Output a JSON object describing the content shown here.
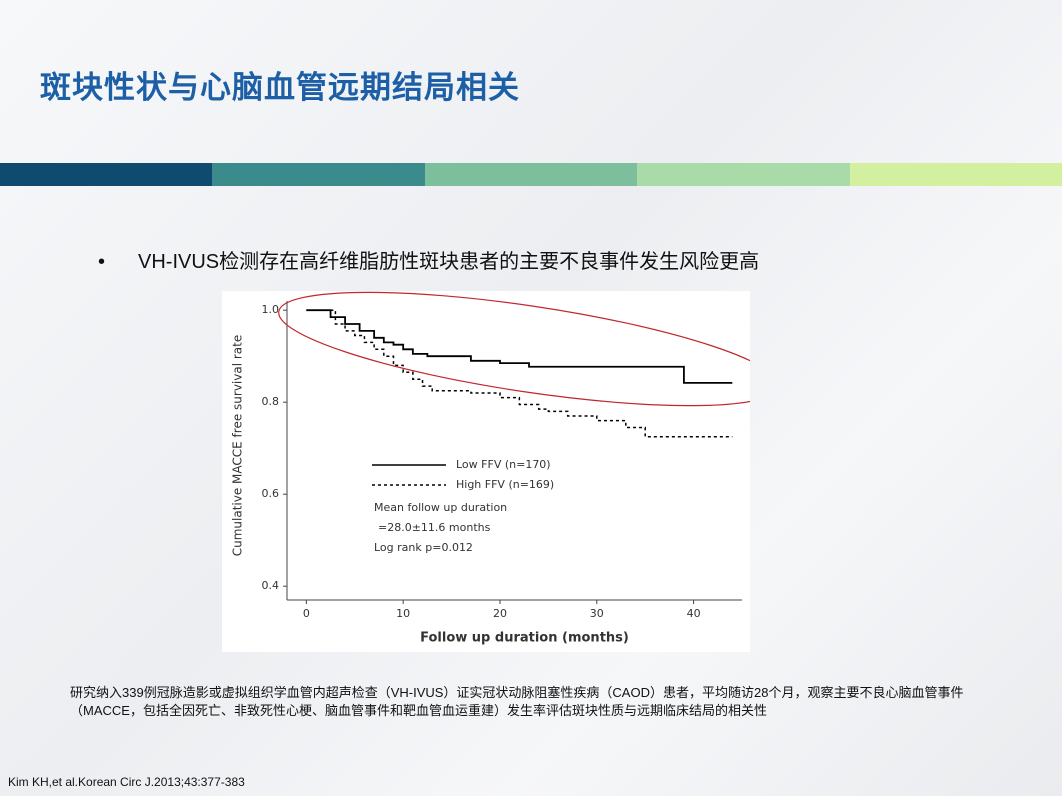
{
  "title": "斑块性状与心脑血管远期结局相关",
  "bullet": "VH-IVUS检测存在高纤维脂肪性斑块患者的主要不良事件发生风险更高",
  "footnote": "研究纳入339例冠脉造影或虚拟组织学血管内超声检查（VH-IVUS）证实冠状动脉阻塞性疾病（CAOD）患者，平均随访28个月，观察主要不良心脑血管事件（MACCE，包括全因死亡、非致死性心梗、脑血管事件和靶血管血运重建）发生率评估斑块性质与远期临床结局的相关性",
  "citation": "Kim KH,et al.Korean Circ J.2013;43:377-383",
  "chart_data": {
    "type": "line",
    "xlabel": "Follow up duration (months)",
    "ylabel": "Cumulative MACCE free survival rate",
    "annotations": [
      "Mean follow up duration",
      "=28.0±11.6 months",
      "Log rank p=0.012"
    ],
    "xlim": [
      -2,
      45
    ],
    "xticks": [
      0,
      10,
      20,
      30,
      40
    ],
    "ylim": [
      0.37,
      1.02
    ],
    "yticks": [
      0.4,
      0.6,
      0.8,
      {
        "value": 1,
        "label": "1.0"
      }
    ],
    "series": [
      {
        "name": "Low FFV (n=170)",
        "color": "#000000",
        "dash": false,
        "x": [
          0,
          2.5,
          4,
          5.5,
          7,
          8,
          9,
          10,
          11,
          12.5,
          17,
          20,
          23,
          39,
          44
        ],
        "values": [
          1.0,
          0.985,
          0.97,
          0.955,
          0.94,
          0.93,
          0.925,
          0.915,
          0.905,
          0.9,
          0.89,
          0.885,
          0.877,
          0.842,
          0.842
        ]
      },
      {
        "name": "High FFV (n=169)",
        "color": "#000000",
        "dash": true,
        "x": [
          0,
          3,
          4,
          5,
          6,
          7,
          8,
          9,
          10,
          11,
          12,
          13,
          17,
          20,
          22,
          24,
          25,
          27,
          30,
          33,
          35,
          44
        ],
        "values": [
          1.0,
          0.97,
          0.955,
          0.945,
          0.93,
          0.915,
          0.9,
          0.88,
          0.865,
          0.85,
          0.835,
          0.825,
          0.82,
          0.81,
          0.795,
          0.785,
          0.78,
          0.77,
          0.76,
          0.745,
          0.725,
          0.725
        ]
      }
    ]
  }
}
